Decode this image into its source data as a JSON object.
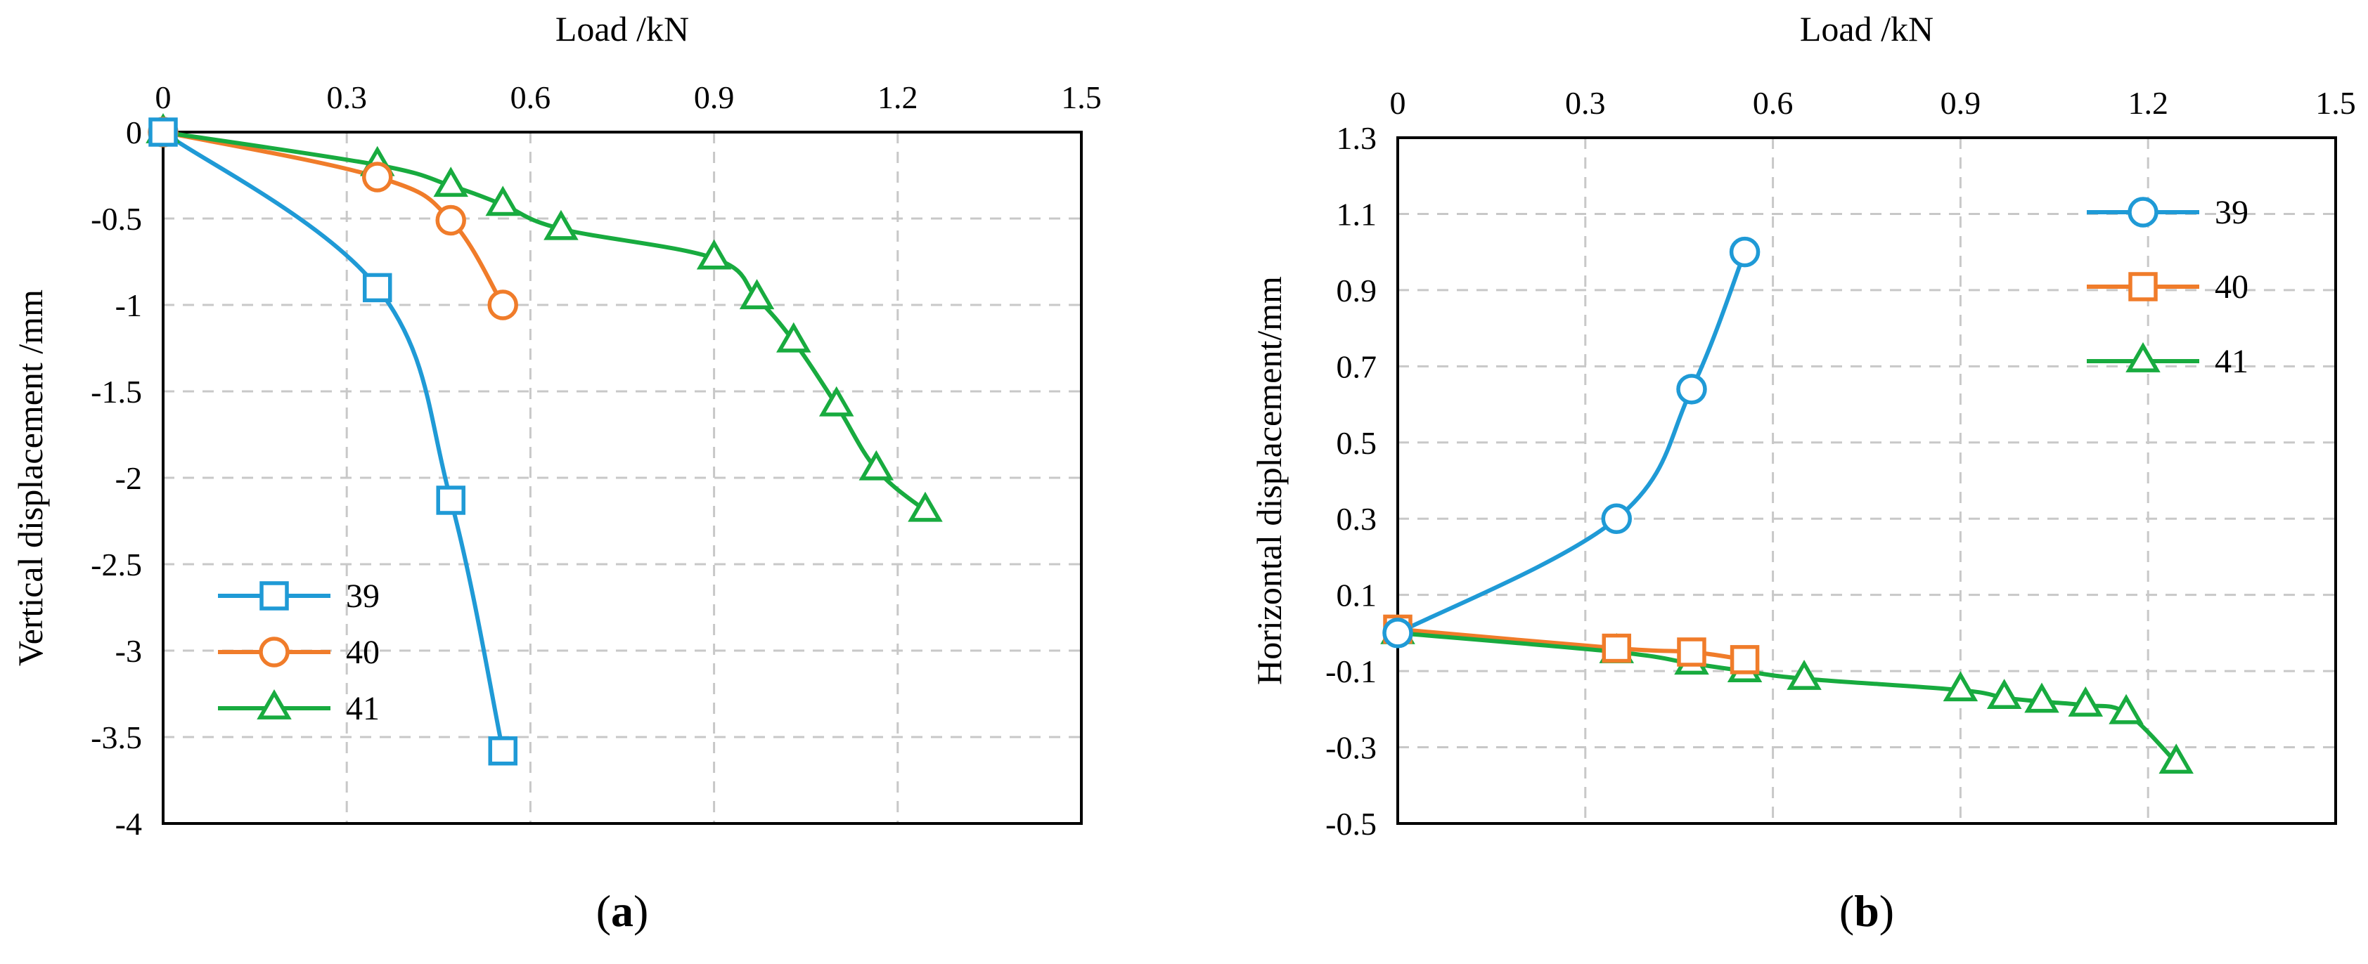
{
  "chart_data": [
    {
      "type": "line",
      "panel_label": "(a)",
      "panel_letter": "a",
      "xlabel": "Load /kN",
      "ylabel": "Vertical displacement /mm",
      "x_axis_position": "top",
      "xlim": [
        0,
        1.5
      ],
      "ylim": [
        -4,
        0
      ],
      "xticks": [
        0,
        0.3,
        0.6,
        0.9,
        1.2,
        1.5
      ],
      "xtick_labels": [
        "0",
        "0.3",
        "0.6",
        "0.9",
        "1.2",
        "1.5"
      ],
      "yticks": [
        0,
        -0.5,
        -1,
        -1.5,
        -2,
        -2.5,
        -3,
        -3.5,
        -4
      ],
      "ytick_labels": [
        "0",
        "-0.5",
        "-1",
        "-1.5",
        "-2",
        "-2.5",
        "-3",
        "-3.5",
        "-4"
      ],
      "grid": true,
      "legend_position": "bottom-left",
      "series": [
        {
          "name": "39",
          "color": "#1f9ad6",
          "marker": "square",
          "x": [
            0,
            0.35,
            0.47,
            0.555
          ],
          "y": [
            0,
            -0.9,
            -2.13,
            -3.58
          ]
        },
        {
          "name": "40",
          "color": "#f07c2a",
          "marker": "circle",
          "x": [
            0,
            0.35,
            0.47,
            0.555
          ],
          "y": [
            0,
            -0.26,
            -0.51,
            -1.0
          ]
        },
        {
          "name": "41",
          "color": "#18ab3f",
          "marker": "triangle",
          "x": [
            0,
            0.35,
            0.47,
            0.555,
            0.65,
            0.9,
            0.97,
            1.03,
            1.1,
            1.165,
            1.245
          ],
          "y": [
            0,
            -0.19,
            -0.31,
            -0.42,
            -0.56,
            -0.73,
            -0.96,
            -1.21,
            -1.58,
            -1.95,
            -2.19
          ]
        }
      ]
    },
    {
      "type": "line",
      "panel_label": "(b)",
      "panel_letter": "b",
      "xlabel": "Load /kN",
      "ylabel": "Horizontal displacement/mm",
      "x_axis_position": "top",
      "xlim": [
        0,
        1.5
      ],
      "ylim": [
        -0.5,
        1.3
      ],
      "xticks": [
        0,
        0.3,
        0.6,
        0.9,
        1.2,
        1.5
      ],
      "xtick_labels": [
        "0",
        "0.3",
        "0.6",
        "0.9",
        "1.2",
        "1.5"
      ],
      "yticks": [
        1.3,
        1.1,
        0.9,
        0.7,
        0.5,
        0.3,
        0.1,
        -0.1,
        -0.3,
        -0.5
      ],
      "ytick_labels": [
        "1.3",
        "1.1",
        "0.9",
        "0.7",
        "0.5",
        "0.3",
        "0.1",
        "-0.1",
        "-0.3",
        "-0.5"
      ],
      "grid": true,
      "legend_position": "top-right",
      "series": [
        {
          "name": "39",
          "color": "#1f9ad6",
          "marker": "circle",
          "x": [
            0,
            0.35,
            0.47,
            0.555
          ],
          "y": [
            0,
            0.3,
            0.64,
            1.0
          ]
        },
        {
          "name": "40",
          "color": "#f07c2a",
          "marker": "square",
          "x": [
            0,
            0.35,
            0.47,
            0.555
          ],
          "y": [
            0.01,
            -0.04,
            -0.05,
            -0.07
          ]
        },
        {
          "name": "41",
          "color": "#18ab3f",
          "marker": "triangle",
          "x": [
            0,
            0.35,
            0.47,
            0.555,
            0.65,
            0.9,
            0.97,
            1.03,
            1.1,
            1.165,
            1.245
          ],
          "y": [
            0,
            -0.05,
            -0.08,
            -0.1,
            -0.12,
            -0.15,
            -0.17,
            -0.18,
            -0.19,
            -0.21,
            -0.34
          ]
        }
      ]
    }
  ]
}
